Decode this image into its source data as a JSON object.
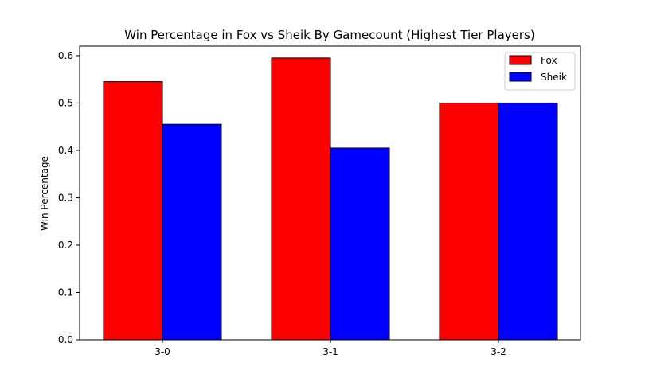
{
  "chart_data": {
    "type": "bar",
    "title": "Win Percentage in Fox vs Sheik By Gamecount (Highest Tier Players)",
    "xlabel": "",
    "ylabel": "Win Percentage",
    "categories": [
      "3-0",
      "3-1",
      "3-2"
    ],
    "series": [
      {
        "name": "Fox",
        "values": [
          0.545,
          0.595,
          0.5
        ],
        "color": "#ff0000"
      },
      {
        "name": "Sheik",
        "values": [
          0.455,
          0.405,
          0.5
        ],
        "color": "#0000ff"
      }
    ],
    "ylim": [
      0,
      0.62
    ],
    "yticks": [
      "0.0",
      "0.1",
      "0.2",
      "0.3",
      "0.4",
      "0.5",
      "0.6"
    ],
    "grid": false,
    "legend_position": "top-right"
  }
}
